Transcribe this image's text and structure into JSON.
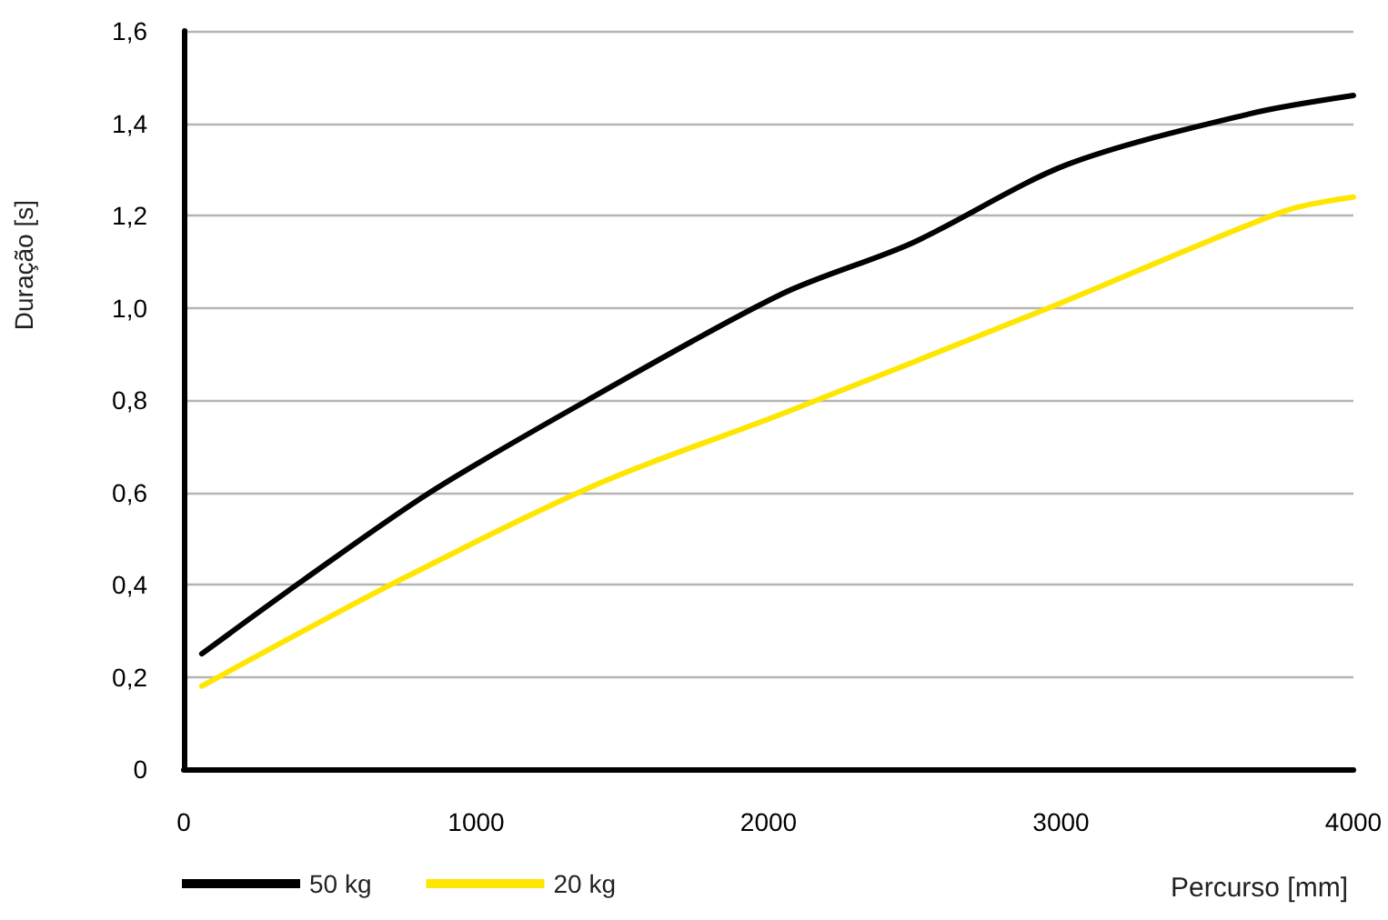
{
  "chart_data": {
    "type": "line",
    "xlabel": "Percurso [mm]",
    "ylabel": "Duração [s]",
    "xlim": [
      0,
      4000
    ],
    "xticks": [
      0,
      1000,
      2000,
      3000,
      4000
    ],
    "ylim": [
      0,
      1.6
    ],
    "yticks": [
      0,
      {
        "value": 0.2,
        "label": "0,2"
      },
      {
        "value": 0.4,
        "label": "0,4"
      },
      {
        "value": 0.6,
        "label": "0,6"
      },
      {
        "value": 0.8,
        "label": "0,8"
      },
      {
        "value": 1.0,
        "label": "1,0"
      },
      {
        "value": 1.2,
        "label": "1,2"
      },
      {
        "value": 1.4,
        "label": "1,4"
      },
      {
        "value": 1.6,
        "label": "1,6"
      }
    ],
    "grid": "y",
    "legend": "bottom left",
    "marker": "none",
    "line_style": "solid",
    "series": [
      {
        "name": "50 kg",
        "color": "#000000",
        "x": [
          62,
          410,
          843,
          1382,
          2046,
          2490,
          3020,
          3643,
          4000
        ],
        "values": [
          0.25,
          0.41,
          0.6,
          0.8,
          1.03,
          1.14,
          1.31,
          1.42,
          1.46
        ]
      },
      {
        "name": "20 kg",
        "color": "#ffe600",
        "x": [
          62,
          740,
          1424,
          2046,
          2960,
          3767,
          4000
        ],
        "values": [
          0.18,
          0.41,
          0.62,
          0.77,
          1.0,
          1.21,
          1.24
        ]
      }
    ]
  }
}
